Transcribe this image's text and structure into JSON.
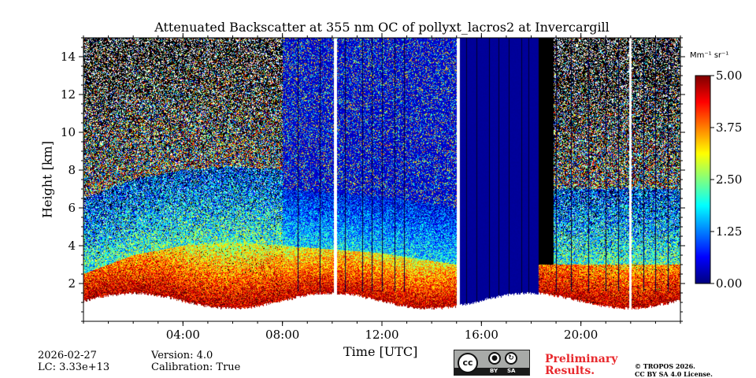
{
  "chart_data": {
    "type": "heatmap",
    "title": "Attenuated Backscatter at 355 nm OC of pollyxt_lacros2 at Invercargill",
    "xlabel": "Time [UTC]",
    "ylabel": "Height [km]",
    "x_tick_labels": [
      "04:00",
      "08:00",
      "12:00",
      "16:00",
      "20:00"
    ],
    "x_ticks_hours": [
      4,
      8,
      12,
      16,
      20
    ],
    "xlim_hours": [
      0,
      24
    ],
    "y_ticks": [
      2,
      4,
      6,
      8,
      10,
      12,
      14
    ],
    "y_tick_labels": [
      "2",
      "4",
      "6",
      "8",
      "10",
      "12",
      "14"
    ],
    "ylim_km": [
      0,
      15
    ],
    "colorbar": {
      "unit_label": "Mm⁻¹ sr⁻¹",
      "range": [
        0.0,
        5.0
      ],
      "ticks": [
        0.0,
        1.25,
        2.5,
        3.75,
        5.0
      ],
      "tick_labels": [
        "0.00",
        "1.25",
        "2.50",
        "3.75",
        "5.00"
      ],
      "colormap": "jet"
    },
    "data_gaps_hours": [
      [
        10.08,
        10.2
      ],
      [
        15.0,
        15.12
      ],
      [
        21.95,
        22.05
      ]
    ],
    "clear_sky_low_signal_hours": [
      [
        8.0,
        10.08
      ],
      [
        10.2,
        15.0
      ],
      [
        15.12,
        18.3
      ]
    ],
    "cloud_columns_hours": [
      8.6,
      9.5,
      10.5,
      11.2,
      11.6,
      12.0,
      12.5,
      12.9,
      15.4,
      15.8,
      16.3,
      16.7,
      17.1,
      17.6,
      17.9,
      19.0,
      19.6,
      20.3,
      21.0,
      21.5,
      22.5,
      23.0,
      23.5
    ],
    "aerosol_layer_top_km_profile": [
      {
        "hour": 0,
        "top_km": 2.5
      },
      {
        "hour": 2,
        "top_km": 3.5
      },
      {
        "hour": 4,
        "top_km": 4.0
      },
      {
        "hour": 6,
        "top_km": 4.2
      },
      {
        "hour": 8,
        "top_km": 4.0
      },
      {
        "hour": 10,
        "top_km": 3.8
      },
      {
        "hour": 12,
        "top_km": 3.6
      },
      {
        "hour": 14,
        "top_km": 3.2
      },
      {
        "hour": 15,
        "top_km": 3.0
      }
    ]
  },
  "footer": {
    "date": "2026-02-27",
    "lc": "LC: 3.33e+13",
    "version": "Version: 4.0",
    "calibration": "Calibration: True",
    "preliminary_line1": "Preliminary",
    "preliminary_line2": "Results.",
    "copyright_line1": "© TROPOS 2026.",
    "copyright_line2": "CC BY SA 4.0 License.",
    "license_badge": {
      "cc": "cc",
      "by": "BY",
      "sa": "SA"
    }
  }
}
